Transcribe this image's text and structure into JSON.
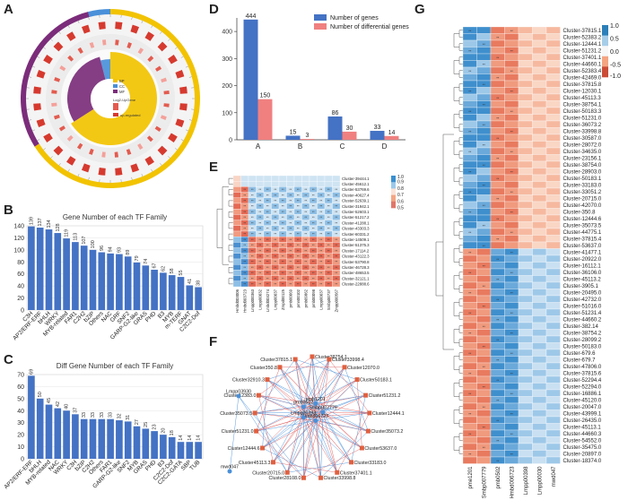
{
  "panel_labels": [
    "A",
    "B",
    "C",
    "D",
    "E",
    "F",
    "G"
  ],
  "panelA": {
    "type": "circos",
    "legend_items": [
      "BP",
      "CC",
      "MF",
      "Log2-UpGene",
      "up-regulated"
    ],
    "go_categories": [
      "BP",
      "CC",
      "MF"
    ],
    "category_colors": {
      "BP": "#f2c300",
      "CC": "#4a90d9",
      "MF": "#7b2c7a"
    }
  },
  "chart_data": [
    {
      "id": "B",
      "type": "bar",
      "title": "Gene Number of each TF Family",
      "ylim": [
        0,
        140
      ],
      "yticks": [
        0,
        20,
        40,
        60,
        80,
        100,
        120,
        140
      ],
      "categories": [
        "C3H",
        "AP2/ERF-ERF",
        "bHLH",
        "WRKY",
        "MYB-related",
        "FAR1",
        "C2H2",
        "bZIP",
        "Others",
        "NAC",
        "GRF",
        "SNF2",
        "GARP-G2-like",
        "GRAS",
        "PHD",
        "B3",
        "MYB",
        "m-TERF",
        "GNAT",
        "C2C2-Dof"
      ],
      "values": [
        139,
        137,
        134,
        128,
        119,
        113,
        107,
        100,
        96,
        94,
        93,
        89,
        79,
        74,
        67,
        62,
        58,
        55,
        41,
        38
      ],
      "bar_color": "#4472c4"
    },
    {
      "id": "C",
      "type": "bar",
      "title": "Diff Gene Number of each TF Family",
      "ylim": [
        0,
        70
      ],
      "yticks": [
        0,
        10,
        20,
        30,
        40,
        50,
        60,
        70
      ],
      "categories": [
        "AP2/ERF-ERF",
        "bHLH",
        "MYB-related",
        "NAC",
        "WRKY",
        "C3H",
        "bZIP",
        "C2H2",
        "Others",
        "FAR1",
        "GARP-G2-like",
        "SNF2",
        "MYB",
        "GRAS",
        "PHD",
        "B3",
        "C2C2-Dof",
        "C2C2-GATA",
        "SBP",
        "TUB"
      ],
      "values": [
        69,
        50,
        45,
        42,
        40,
        37,
        33,
        33,
        33,
        33,
        32,
        31,
        27,
        25,
        23,
        20,
        18,
        14,
        14,
        14
      ],
      "bar_color": "#4472c4"
    },
    {
      "id": "D",
      "type": "bar",
      "title": "",
      "ylim": [
        0,
        450
      ],
      "yticks": [
        0,
        100,
        200,
        300,
        400
      ],
      "categories": [
        "A",
        "B",
        "C",
        "D"
      ],
      "series": [
        {
          "name": "Number of genes",
          "color": "#4472c4",
          "values": [
            444,
            15,
            86,
            33
          ]
        },
        {
          "name": "Number of differential genes",
          "color": "#f08080",
          "values": [
            150,
            3,
            30,
            14
          ]
        }
      ]
    },
    {
      "id": "E",
      "type": "heatmap",
      "rows": [
        "Cluster-39444.1",
        "Cluster-45612.1",
        "Cluster-53769.6",
        "Cluster-40627.4",
        "Cluster-52639.1",
        "Cluster-31942.1",
        "Cluster-52603.1",
        "Cluster-51217.2",
        "Cluster-41288.1",
        "Cluster-43303.3",
        "Cluster-60331.2",
        "Cluster-14509.1",
        "Cluster-51375.3",
        "Cluster-17114.2",
        "Cluster-43122.3",
        "Cluster-53790.8",
        "Cluster-46728.3",
        "Cluster-48653.5",
        "Cluster-32121.1",
        "Cluster-22888.6"
      ],
      "columns": [
        "Hmbd003006",
        "Hmbd003723",
        "Lmpp000363",
        "Lmpp00032",
        "Lmbd003274",
        "Lmpp00037",
        "Zmpd00125",
        "pmb00069",
        "pmn00102",
        "pmb09862",
        "pmb00098",
        "Lmpp00037",
        "Smbp00737",
        "Zmpp000567"
      ],
      "colorbar_ticks": [
        "1.0",
        "0.9",
        "0.8",
        "0.7",
        "0.6",
        "0.5"
      ],
      "colorbar_colors": [
        "#3a8fd0",
        "#9cc9ea",
        "#fbe3d6",
        "#f4a582",
        "#e0776a"
      ]
    },
    {
      "id": "G",
      "type": "heatmap",
      "rows": [
        "Cluster-37815.1",
        "Cluster-52383.2",
        "Cluster-12444.1",
        "Cluster-51231.2",
        "Cluster-37401.1",
        "Cluster-44660.1",
        "Cluster-52383.4",
        "Cluster-42469.0",
        "Cluster-37815.8",
        "Cluster-12030.1",
        "Cluster-45113.3",
        "Cluster-38754.1",
        "Cluster-50183.3",
        "Cluster-51231.0",
        "Cluster-36073.2",
        "Cluster-33998.8",
        "Cluster-30587.0",
        "Cluster-28072.0",
        "Cluster-34635.0",
        "Cluster-23156.1",
        "Cluster-38754.0",
        "Cluster-28903.0",
        "Cluster-50183.1",
        "Cluster-33183.0",
        "Cluster-33051.2",
        "Cluster-20715.0",
        "Cluster-42070.0",
        "Cluster-350.8",
        "Cluster-12444.6",
        "Cluster-35073.5",
        "Cluster-44775.1",
        "Cluster-37815.4",
        "Cluster-53637.0",
        "Cluster-41477.1",
        "Cluster-20922.0",
        "Cluster-16112.1",
        "Cluster-36106.0",
        "Cluster-45113.2",
        "Cluster-3905.1",
        "Cluster-20495.0",
        "Cluster-42732.0",
        "Cluster-51016.0",
        "Cluster-51231.4",
        "Cluster-44660.2",
        "Cluster-382.14",
        "Cluster-38754.2",
        "Cluster-28099.2",
        "Cluster-50183.0",
        "Cluster-679.6",
        "Cluster-679.7",
        "Cluster-47806.0",
        "Cluster-37815.6",
        "Cluster-52294.4",
        "Cluster-52294.0",
        "Cluster-16886.1",
        "Cluster-45120.0",
        "Cluster-20047.0",
        "Cluster-43999.1",
        "Cluster-26435.0",
        "Cluster-45113.1",
        "Cluster-44660.3",
        "Cluster-54552.0",
        "Cluster-35475.0",
        "Cluster-20897.0",
        "Cluster-18374.0"
      ],
      "columns": [
        "pme1201",
        "Smbp007779",
        "pmb0502",
        "Hmbd006723",
        "Lmpp00398",
        "Lmpp00030",
        "mwd047"
      ],
      "colorbar_ticks": [
        "1.0",
        "0.5",
        "0.0",
        "-0.5",
        "-1.0"
      ],
      "colorbar_colors": [
        "#2c7fb8",
        "#a6cde8",
        "#f7f7f7",
        "#f4a582",
        "#ca4c36"
      ]
    }
  ],
  "panelF": {
    "type": "network",
    "hub_nodes": [
      "Smbp007779",
      "Hmbd06723",
      "Lmpp00398",
      "pmb0502",
      "pmb1201",
      "Lmpp03930",
      "mwd047"
    ],
    "cluster_nodes": [
      "Cluster38754.1",
      "Cluster33998.4",
      "Cluster12070.0",
      "Cluster50183.1",
      "Cluster51231.2",
      "Cluster12444.1",
      "Cluster35073.2",
      "Cluster53637.0",
      "Cluster33183.0",
      "Cluster37401.1",
      "Cluster33998.8",
      "Cluster28108.0",
      "Cluster20715.0",
      "Cluster45113.3",
      "Cluster12444.6",
      "Cluster51231.0",
      "Cluster35073.5",
      "Cluster12383.0",
      "Cluster32910.3",
      "Cluster350.8",
      "Cluster37815.1"
    ],
    "edge_colors": [
      "#4a90d9",
      "#e06060"
    ]
  }
}
